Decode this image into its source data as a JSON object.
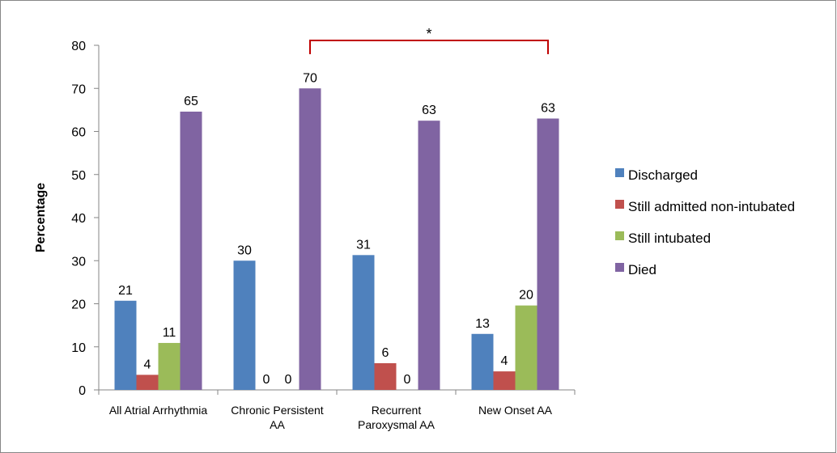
{
  "chart_data": {
    "type": "bar",
    "title": "",
    "xlabel": "",
    "ylabel": "Percentage",
    "ylim": [
      0,
      80
    ],
    "yticks": [
      0,
      10,
      20,
      30,
      40,
      50,
      60,
      70,
      80
    ],
    "grid": false,
    "legend_position": "right",
    "categories": [
      [
        "All Atrial Arrhythmia"
      ],
      [
        "Chronic Persistent",
        "AA"
      ],
      [
        "Recurrent",
        "Paroxysmal AA"
      ],
      [
        "New Onset AA"
      ]
    ],
    "series": [
      {
        "name": "Discharged",
        "color": "#4f81bd",
        "values": [
          20.7,
          30,
          31.3,
          13
        ],
        "labels": [
          "21",
          "30",
          "31",
          "13"
        ]
      },
      {
        "name": "Still admitted non-intubated",
        "color": "#c0504d",
        "values": [
          3.5,
          0,
          6.2,
          4.3
        ],
        "labels": [
          "4",
          "0",
          "6",
          "4"
        ]
      },
      {
        "name": "Still intubated",
        "color": "#9bbb59",
        "values": [
          10.9,
          0,
          0,
          19.6
        ],
        "labels": [
          "11",
          "0",
          "0",
          "20"
        ]
      },
      {
        "name": "Died",
        "color": "#8064a2",
        "values": [
          64.6,
          70,
          62.5,
          63
        ],
        "labels": [
          "65",
          "70",
          "63",
          "63"
        ]
      }
    ],
    "annotation": {
      "text": "*",
      "from_category": 1,
      "to_category": 3,
      "color": "#c00000"
    }
  }
}
